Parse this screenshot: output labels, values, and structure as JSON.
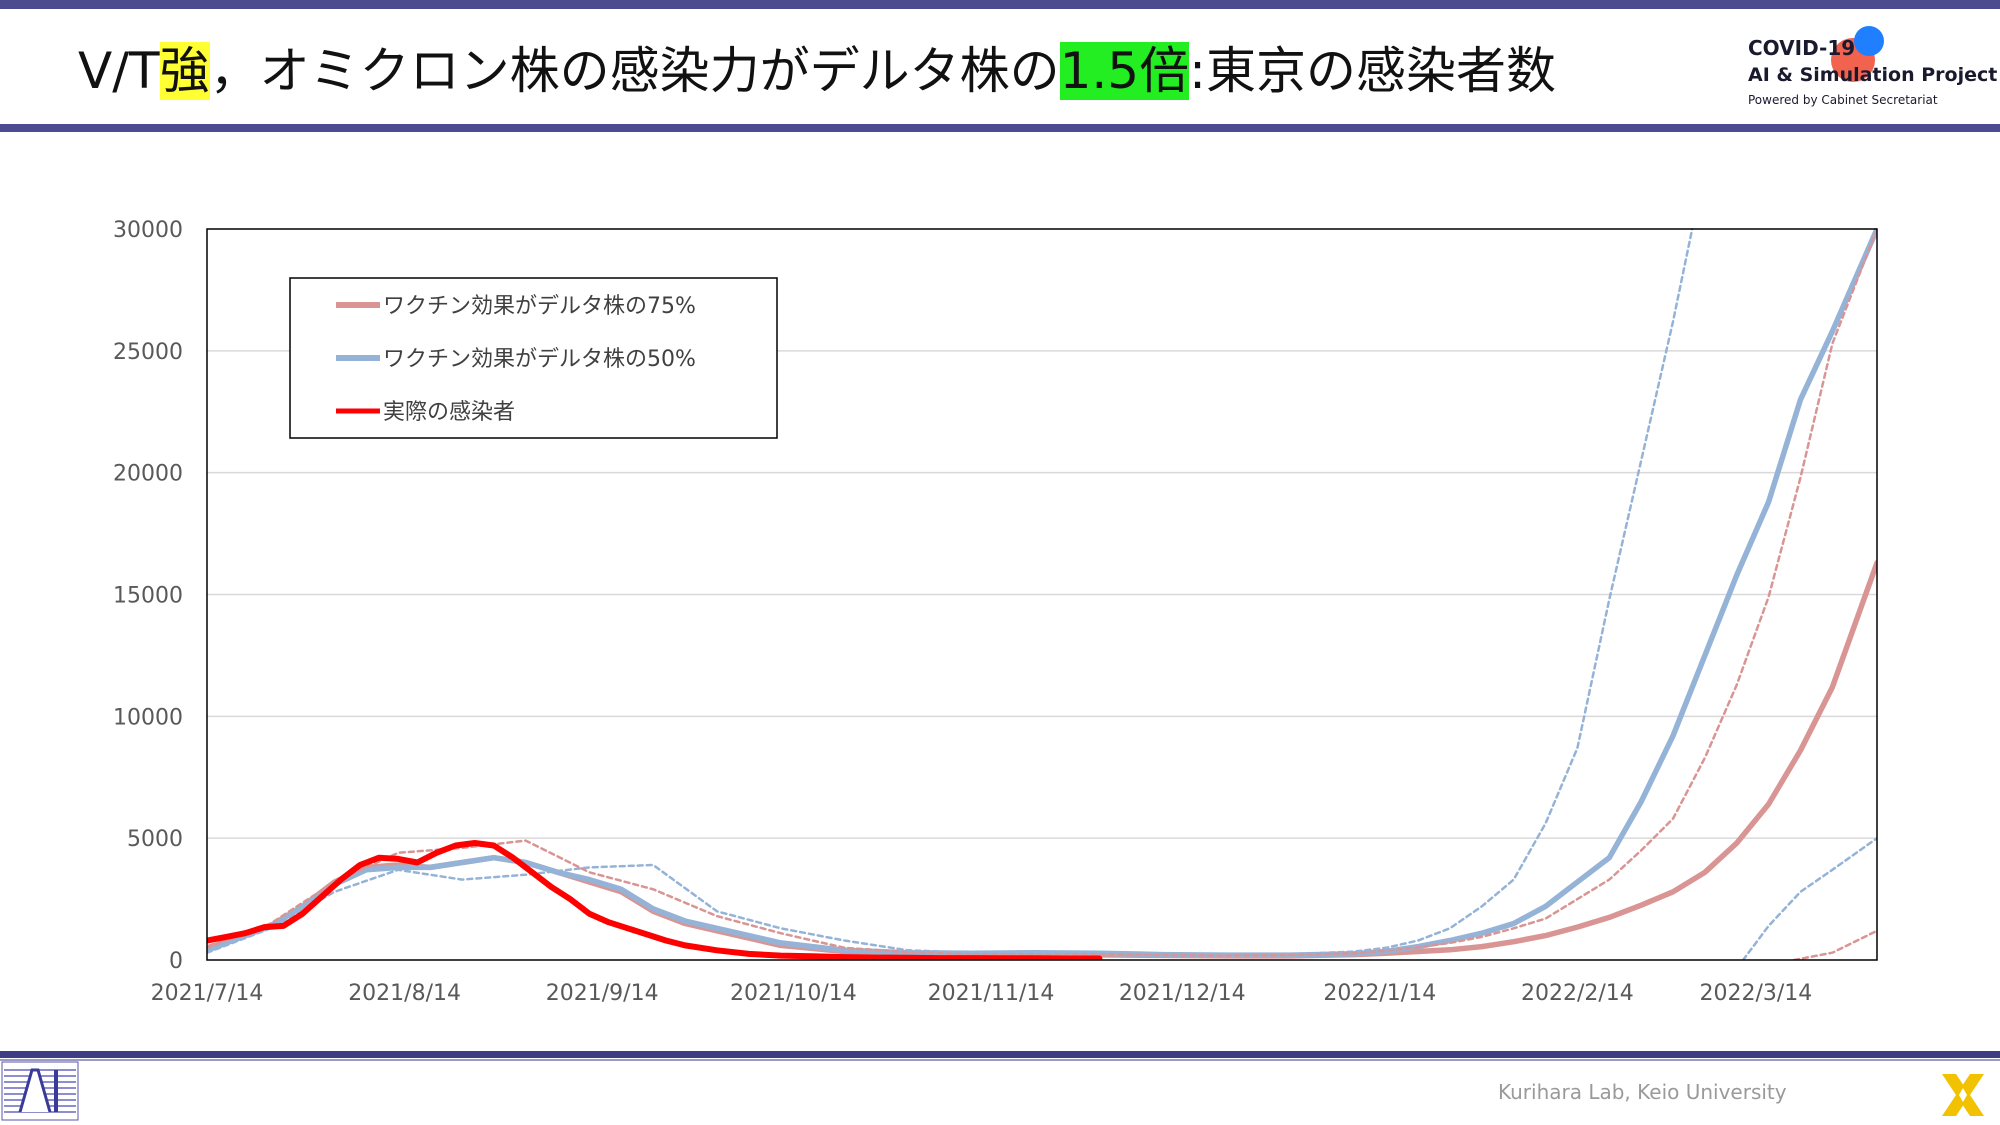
{
  "header": {
    "title_prefix": "V/T",
    "title_hl1": "強",
    "title_mid": "，オミクロン株の感染力がデルタ株の",
    "title_hl2": "1.5倍",
    "title_suffix": ":東京の感染者数",
    "highlight_yellow": "#ffff33",
    "highlight_green": "#22ee22"
  },
  "logo": {
    "line1": "COVID-19",
    "line2": "AI & Simulation Project",
    "line3": "Powered by Cabinet Secretariat"
  },
  "footer": {
    "credit": "Kurihara Lab, Keio University"
  },
  "chart_data": {
    "type": "line",
    "x_tick_labels": [
      "2021/7/14",
      "2021/8/14",
      "2021/9/14",
      "2021/10/14",
      "2021/11/14",
      "2021/12/14",
      "2022/1/14",
      "2022/2/14",
      "2022/3/14"
    ],
    "x_tick_days": [
      0,
      31,
      62,
      92,
      123,
      153,
      184,
      215,
      243
    ],
    "xlim_days": [
      0,
      262
    ],
    "ylim": [
      0,
      30000
    ],
    "y_ticks": [
      0,
      5000,
      10000,
      15000,
      20000,
      25000,
      30000
    ],
    "y_tick_labels": [
      "0",
      "5000",
      "10000",
      "15000",
      "20000",
      "25000",
      "30000"
    ],
    "grid": "horizontal",
    "legend": {
      "placement": "top-left",
      "entries": [
        {
          "label": "ワクチン効果がデルタ株の75%",
          "color": "#d99594"
        },
        {
          "label": "ワクチン効果がデルタ株の50%",
          "color": "#95b3d7"
        },
        {
          "label": "実際の感染者",
          "color": "#ff0000"
        }
      ]
    },
    "series": [
      {
        "name": "ワクチン効果がデルタ株の75%",
        "color": "#d99594",
        "style": "solid",
        "x": [
          0,
          5,
          10,
          15,
          20,
          25,
          30,
          35,
          40,
          45,
          50,
          55,
          60,
          65,
          70,
          75,
          80,
          90,
          100,
          110,
          120,
          130,
          140,
          150,
          160,
          170,
          180,
          185,
          190,
          195,
          200,
          205,
          210,
          215,
          220,
          225,
          230,
          235,
          240,
          245,
          250,
          255,
          262
        ],
        "y": [
          500,
          900,
          1400,
          2200,
          3200,
          3800,
          3900,
          3800,
          4000,
          4200,
          4000,
          3600,
          3200,
          2800,
          2000,
          1500,
          1200,
          600,
          350,
          250,
          220,
          230,
          210,
          190,
          170,
          170,
          220,
          280,
          350,
          420,
          550,
          750,
          1000,
          1350,
          1750,
          2250,
          2800,
          3600,
          4800,
          6400,
          8600,
          11200,
          16300
        ]
      },
      {
        "name": "ワクチン効果がデルタ株の50%",
        "color": "#95b3d7",
        "style": "solid",
        "x": [
          0,
          5,
          10,
          15,
          20,
          25,
          30,
          35,
          40,
          45,
          50,
          55,
          60,
          65,
          70,
          75,
          80,
          90,
          100,
          110,
          120,
          130,
          140,
          150,
          160,
          170,
          180,
          185,
          190,
          195,
          200,
          205,
          210,
          215,
          220,
          225,
          230,
          235,
          240,
          245,
          250,
          255,
          262
        ],
        "y": [
          400,
          900,
          1400,
          2200,
          3100,
          3700,
          3800,
          3800,
          4000,
          4200,
          4000,
          3600,
          3300,
          2900,
          2100,
          1600,
          1300,
          700,
          400,
          300,
          280,
          300,
          280,
          220,
          200,
          200,
          260,
          350,
          550,
          800,
          1100,
          1500,
          2200,
          3200,
          4200,
          6500,
          9200,
          12500,
          15800,
          18800,
          23000,
          25800,
          30000
        ]
      },
      {
        "name": "",
        "color": "#95b3d7",
        "style": "dashed",
        "x": [
          0,
          10,
          20,
          30,
          40,
          50,
          60,
          70,
          80,
          90,
          100,
          110,
          120,
          130,
          140,
          150,
          160,
          170,
          180,
          185,
          190,
          195,
          200,
          205,
          210,
          215,
          220,
          225,
          230,
          233
        ],
        "y": [
          300,
          1300,
          2800,
          3700,
          3300,
          3500,
          3800,
          3900,
          2000,
          1300,
          800,
          400,
          300,
          260,
          260,
          230,
          210,
          230,
          350,
          500,
          800,
          1300,
          2200,
          3300,
          5600,
          8700,
          14800,
          20500,
          26200,
          30000
        ]
      },
      {
        "name": "",
        "color": "#d99594",
        "style": "dashed",
        "x": [
          0,
          10,
          20,
          30,
          40,
          50,
          60,
          70,
          80,
          90,
          100,
          110,
          120,
          130,
          140,
          150,
          160,
          170,
          180,
          185,
          190,
          195,
          200,
          205,
          210,
          215,
          220,
          225,
          230,
          235,
          240,
          245,
          250,
          255,
          262
        ],
        "y": [
          500,
          1500,
          3200,
          4400,
          4600,
          4900,
          3600,
          2900,
          1800,
          1100,
          500,
          320,
          230,
          240,
          230,
          200,
          180,
          200,
          280,
          380,
          520,
          700,
          950,
          1300,
          1700,
          2500,
          3300,
          4500,
          5800,
          8300,
          11300,
          14900,
          19800,
          25300,
          30000
        ]
      },
      {
        "name": "",
        "color": "#95b3d7",
        "style": "dashed",
        "x": [
          241,
          245,
          250,
          255,
          262
        ],
        "y": [
          0,
          1400,
          2800,
          3700,
          5000
        ]
      },
      {
        "name": "",
        "color": "#d99594",
        "style": "dashed",
        "x": [
          249,
          255,
          262
        ],
        "y": [
          0,
          300,
          1200
        ]
      },
      {
        "name": "実際の感染者",
        "color": "#ff0000",
        "style": "solid-thick",
        "x": [
          0,
          3,
          6,
          9,
          12,
          15,
          18,
          21,
          24,
          27,
          30,
          33,
          36,
          39,
          42,
          45,
          48,
          51,
          54,
          57,
          60,
          63,
          66,
          69,
          72,
          75,
          80,
          85,
          90,
          95,
          100,
          105,
          110,
          115,
          120,
          125,
          130,
          135,
          140
        ],
        "y": [
          800,
          950,
          1100,
          1350,
          1400,
          1900,
          2600,
          3300,
          3900,
          4200,
          4150,
          4000,
          4400,
          4700,
          4800,
          4700,
          4200,
          3600,
          3000,
          2500,
          1900,
          1550,
          1300,
          1050,
          800,
          600,
          400,
          250,
          180,
          150,
          120,
          100,
          90,
          80,
          80,
          70,
          70,
          60,
          60
        ]
      }
    ]
  }
}
